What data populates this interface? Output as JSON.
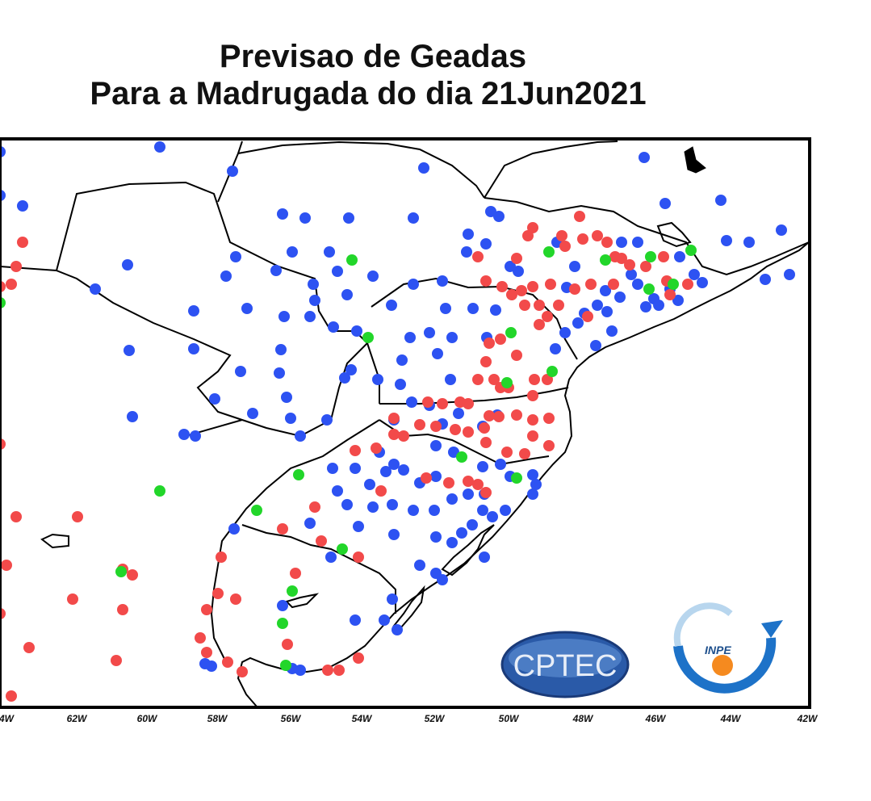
{
  "title_line1": "Previsao  de  Geadas",
  "title_line2": "Para a Madrugada do dia 21Jun2021",
  "colors": {
    "blue": "#2d52f2",
    "red": "#f24a4a",
    "green": "#22d62a",
    "frame": "#000000"
  },
  "x_ticks": [
    "4W",
    "62W",
    "60W",
    "58W",
    "56W",
    "54W",
    "52W",
    "50W",
    "48W",
    "46W",
    "44W",
    "42W"
  ],
  "logos": {
    "cptec": "CPTEC",
    "inpe": "INPE"
  }
}
